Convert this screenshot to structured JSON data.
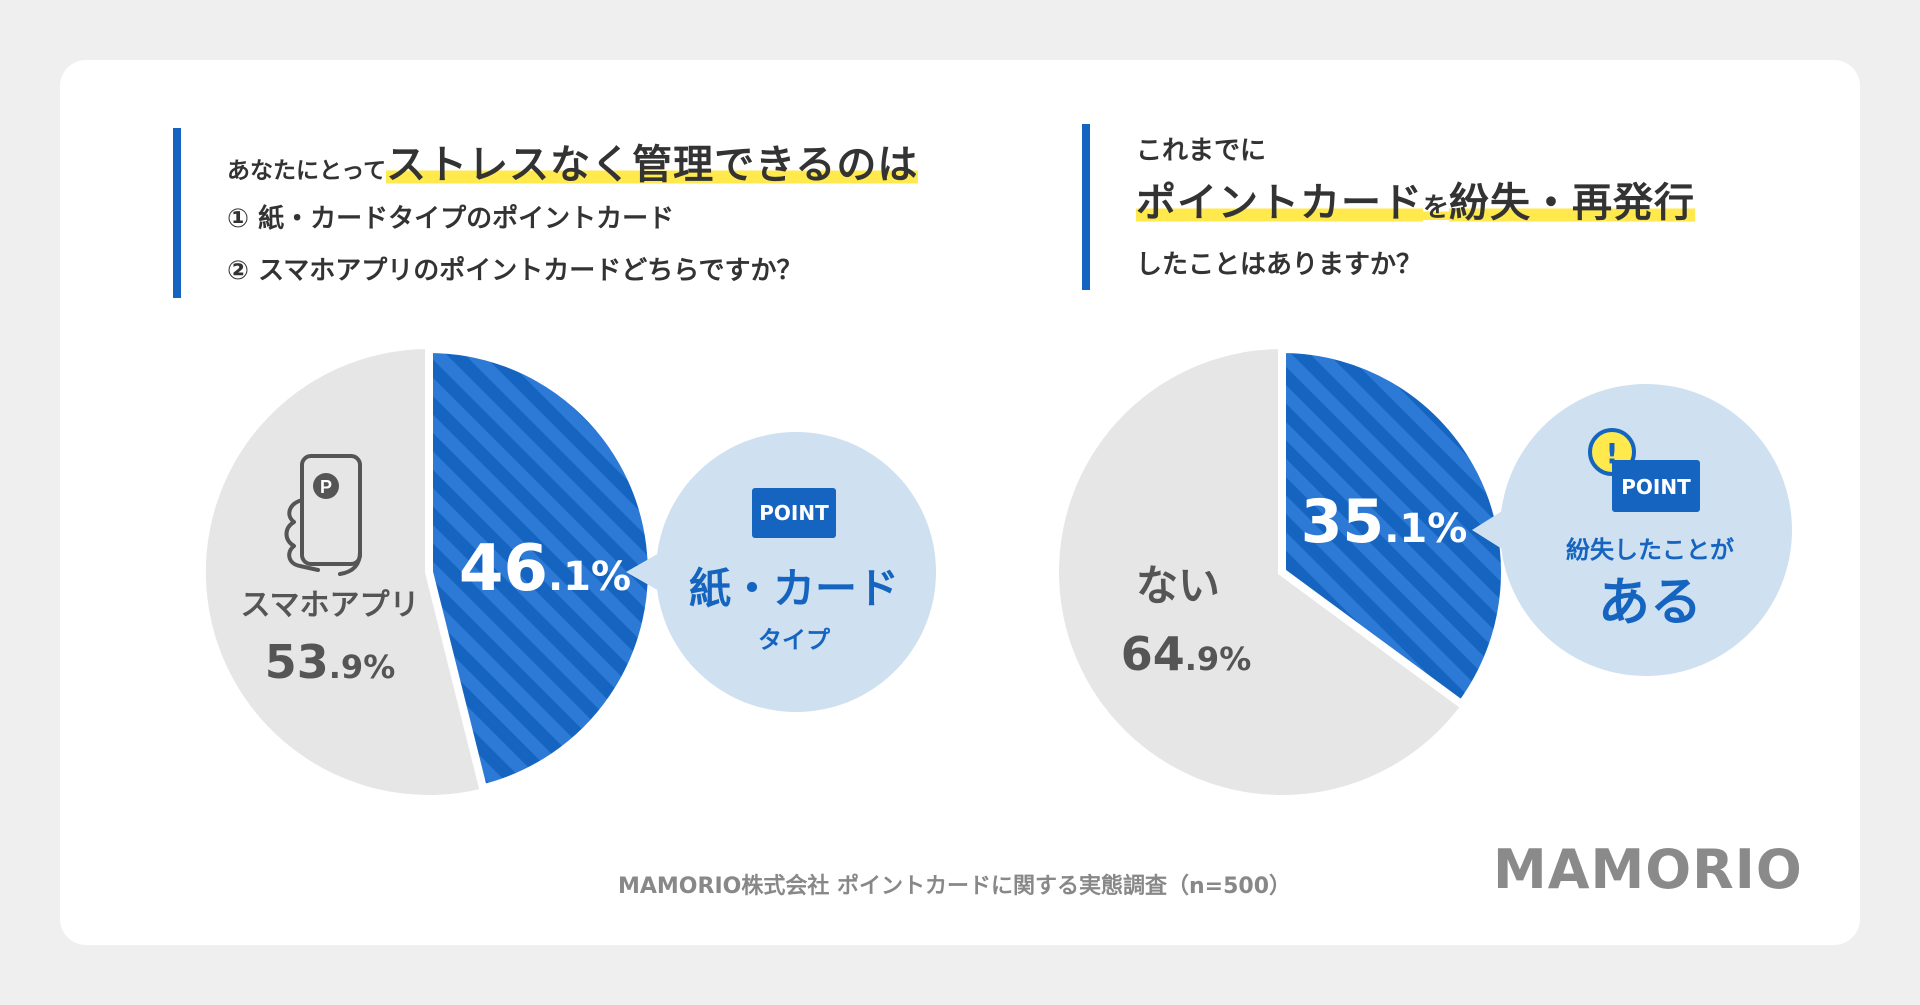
{
  "q1": {
    "line1_prefix": "あなたにとって",
    "line1_highlight": "ストレスなく管理できるのは",
    "line2": "① 紙・カードタイプのポイントカード",
    "line3": "② スマホアプリのポイントカードどちらですか？"
  },
  "q2": {
    "line1": "これまでに",
    "line2_a": "ポイントカード",
    "line2_b": "を",
    "line2_c": "紛失・再発行",
    "line3": "したことはありますか？"
  },
  "chart_data": [
    {
      "type": "pie",
      "title": "あなたにとってストレスなく管理できるのは",
      "categories": [
        "紙・カードタイプ",
        "スマホアプリ"
      ],
      "values": [
        46.1,
        53.9
      ],
      "labels": {
        "paper_pct_int": "46",
        "paper_pct_dec": ".1%",
        "app_name": "スマホアプリ",
        "app_pct_int": "53",
        "app_pct_dec": ".9%"
      },
      "callout": {
        "badge": "POINT",
        "title": "紙・カード",
        "subtitle": "タイプ"
      }
    },
    {
      "type": "pie",
      "title": "ポイントカードを紛失・再発行したことはありますか？",
      "categories": [
        "ある",
        "ない"
      ],
      "values": [
        35.1,
        64.9
      ],
      "labels": {
        "yes_pct_int": "35",
        "yes_pct_dec": ".1%",
        "no_name": "ない",
        "no_pct_int": "64",
        "no_pct_dec": ".9%"
      },
      "callout": {
        "alert": "!",
        "badge": "POINT",
        "title": "紛失したことが",
        "subtitle": "ある"
      }
    }
  ],
  "colors": {
    "primary": "#1565c0",
    "stripe": "#2c7ad6",
    "neutral": "#e6e6e6",
    "callout": "#cfe0f0",
    "highlight": "#ffe94d",
    "alert": "#ffe94d"
  },
  "footer": {
    "source": "MAMORIO株式会社 ポイントカードに関する実態調査（n=500）",
    "logo": "MAMORIO"
  }
}
